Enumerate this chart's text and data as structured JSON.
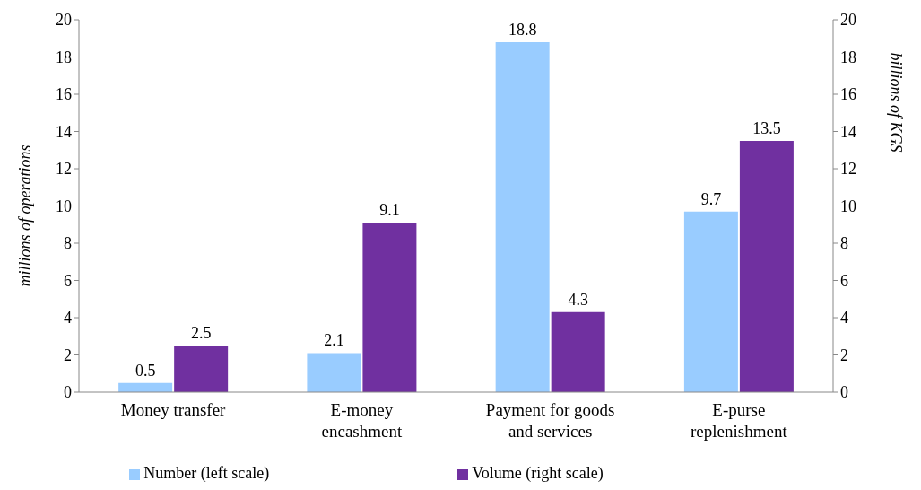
{
  "chart_data": {
    "type": "bar",
    "categories": [
      "Money transfer",
      "E-money encashment",
      "Payment for goods and services",
      "E-purse replenishment"
    ],
    "series": [
      {
        "name": "Number (left scale)",
        "color": "#99ccff",
        "values": [
          0.5,
          2.1,
          18.8,
          9.7
        ]
      },
      {
        "name": "Volume (right scale)",
        "color": "#7030a0",
        "values": [
          2.5,
          9.1,
          4.3,
          13.5
        ],
        "axis": "y2"
      }
    ],
    "ylabel": "millions of operations",
    "y2label": "billions of KGS",
    "ylim": [
      0,
      20
    ],
    "yticks": [
      0,
      2,
      4,
      6,
      8,
      10,
      12,
      14,
      16,
      18,
      20
    ],
    "y2lim": [
      0,
      20
    ],
    "y2ticks": [
      0,
      2,
      4,
      6,
      8,
      10,
      12,
      14,
      16,
      18,
      20
    ],
    "data_labels": true,
    "grid": false,
    "legend": "bottom"
  }
}
